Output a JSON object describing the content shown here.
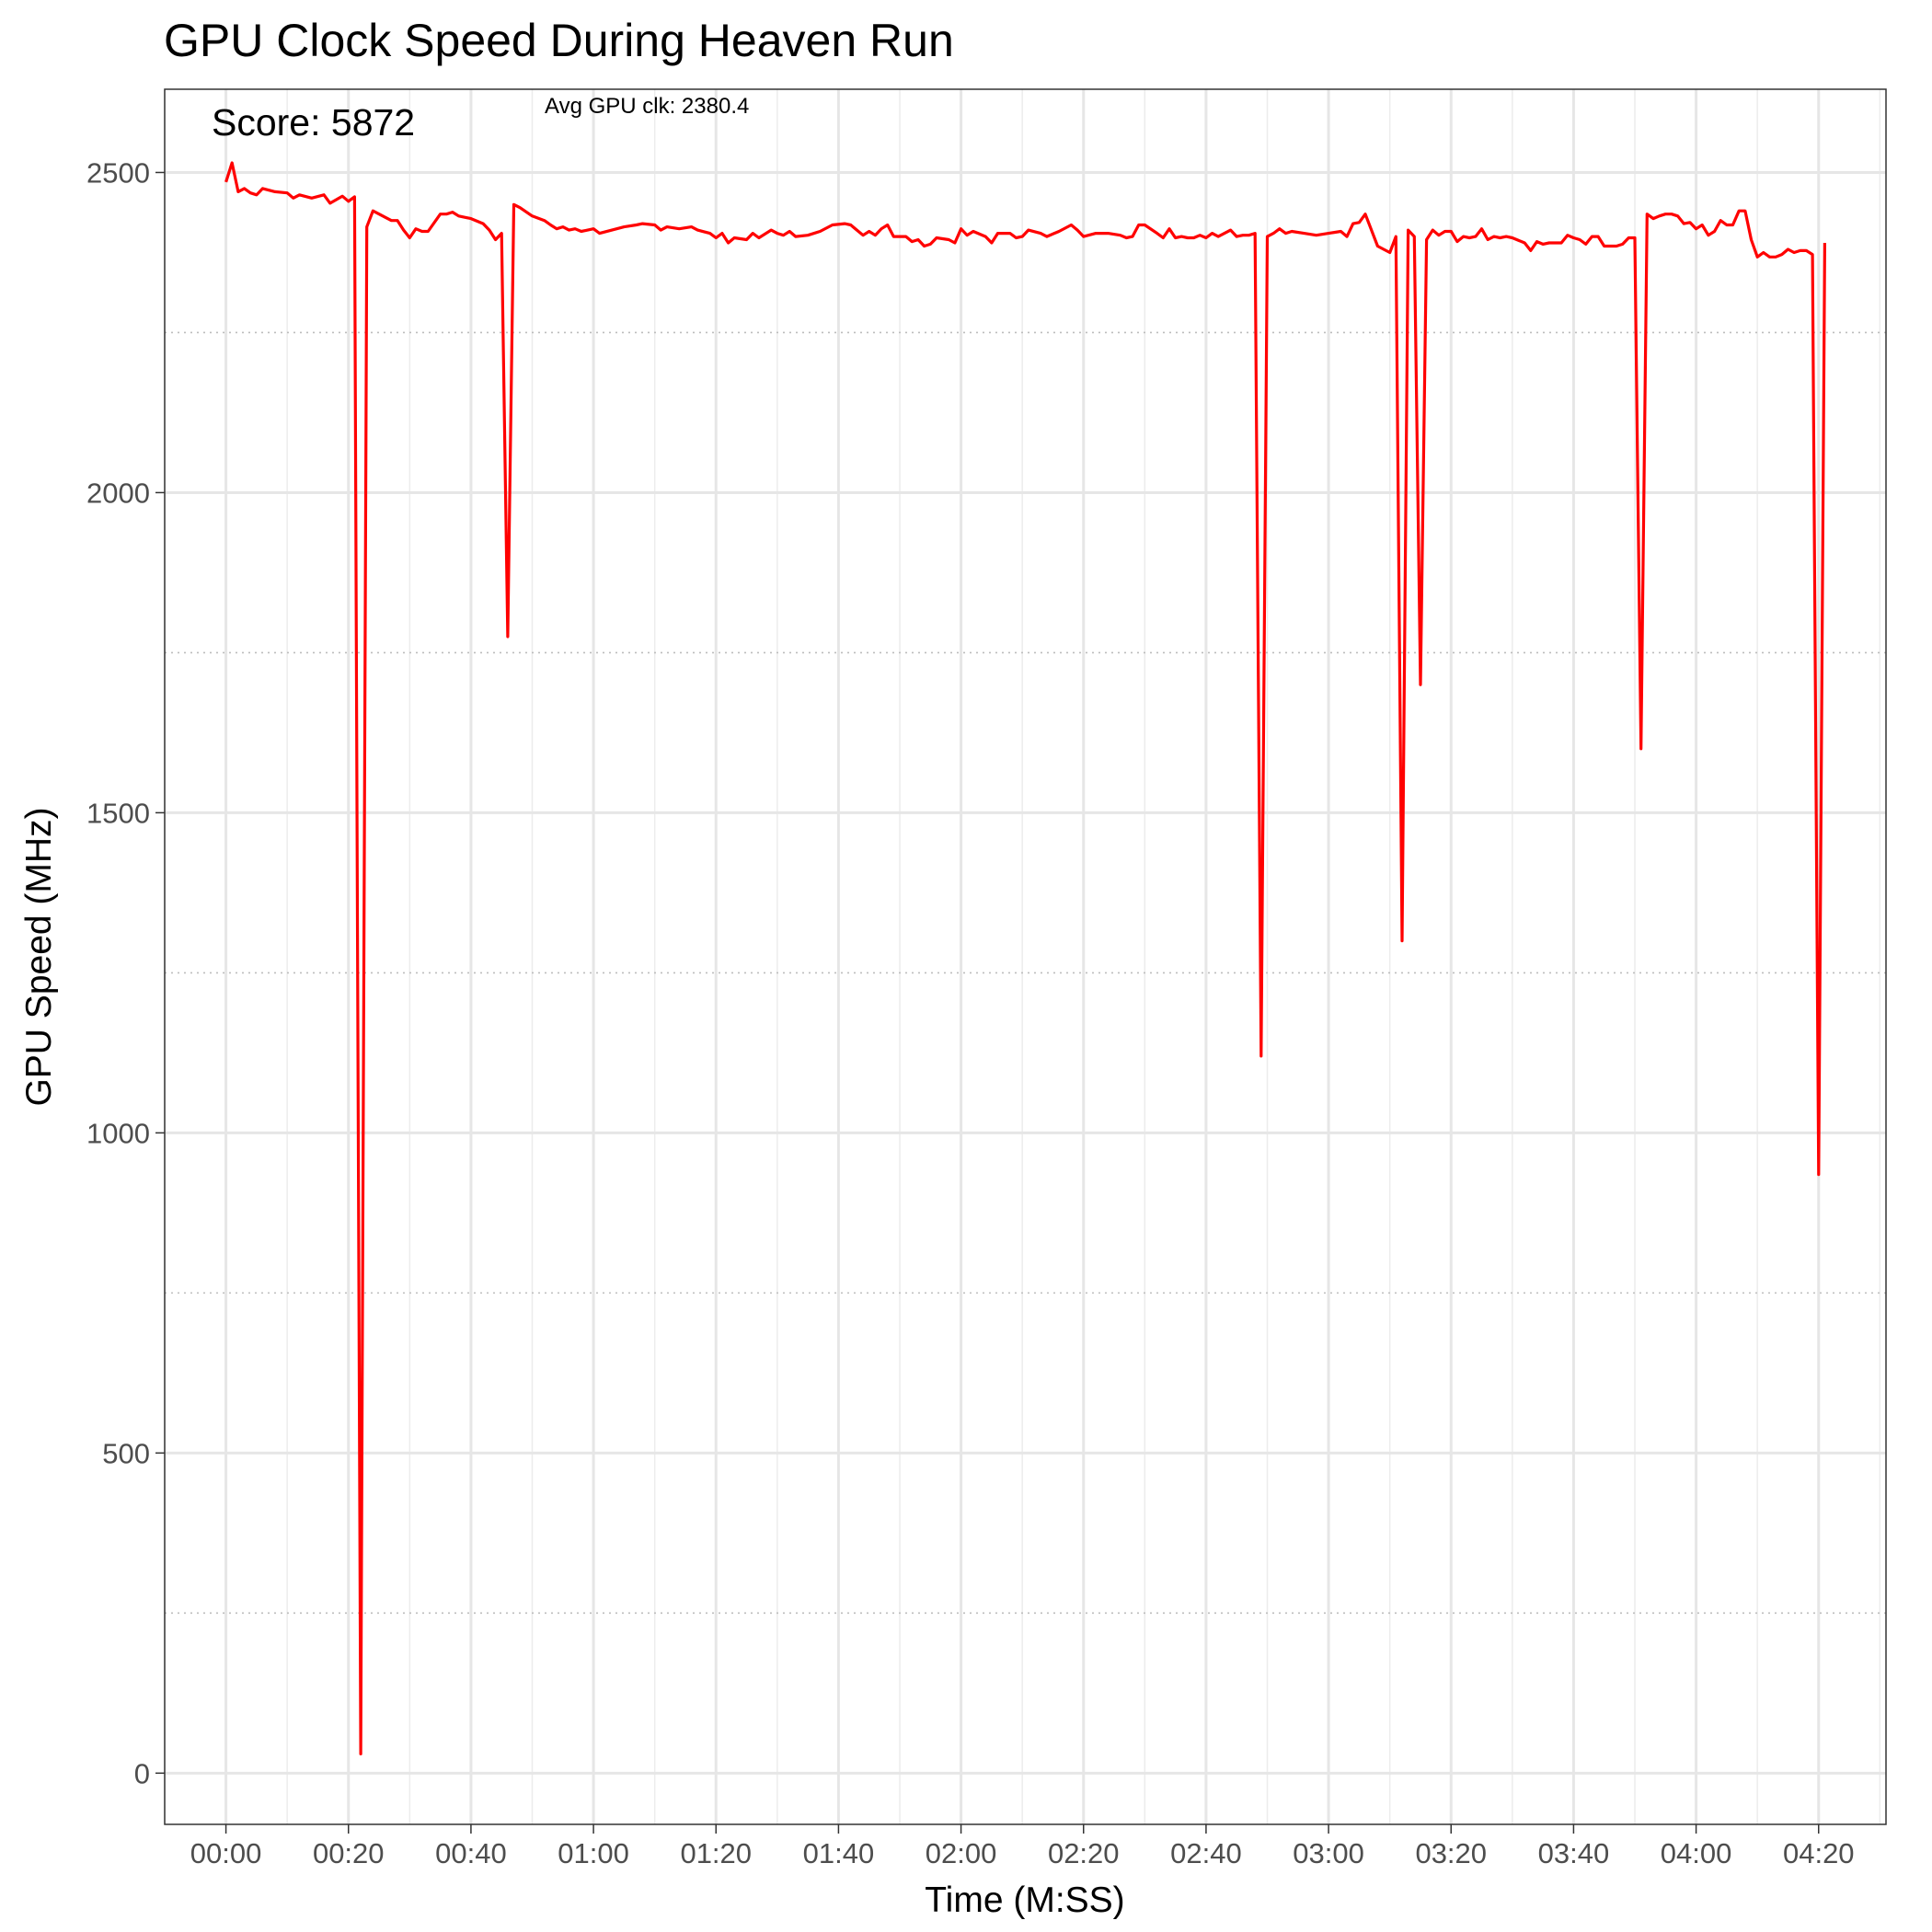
{
  "chart_data": {
    "type": "line",
    "title": "GPU Clock Speed During Heaven Run",
    "xlabel": "Time (M:SS)",
    "ylabel": "GPU Speed (MHz)",
    "x_unit": "seconds",
    "xlim": [
      -10,
      271
    ],
    "ylim": [
      -80,
      2630
    ],
    "x_ticks": [
      0,
      20,
      40,
      60,
      80,
      100,
      120,
      140,
      160,
      180,
      200,
      220,
      240,
      260
    ],
    "x_tick_labels": [
      "00:00",
      "00:20",
      "00:40",
      "01:00",
      "01:20",
      "01:40",
      "02:00",
      "02:20",
      "02:40",
      "03:00",
      "03:20",
      "03:40",
      "04:00",
      "04:20"
    ],
    "y_ticks": [
      0,
      500,
      1000,
      1500,
      2000,
      2500
    ],
    "y_tick_labels": [
      "0",
      "500",
      "1000",
      "1500",
      "2000",
      "2500"
    ],
    "grid": true,
    "dotted_hlines": [
      250,
      750,
      1250,
      1750,
      2250
    ],
    "annotations": {
      "score": "Score: 5872",
      "avg": "Avg GPU clk: 2380.4"
    },
    "series": [
      {
        "color": "#ff0000",
        "points": [
          [
            0,
            2485
          ],
          [
            1,
            2515
          ],
          [
            2,
            2470
          ],
          [
            3,
            2475
          ],
          [
            4,
            2468
          ],
          [
            5,
            2465
          ],
          [
            6,
            2475
          ],
          [
            8,
            2470
          ],
          [
            10,
            2468
          ],
          [
            11,
            2460
          ],
          [
            12,
            2465
          ],
          [
            14,
            2460
          ],
          [
            16,
            2465
          ],
          [
            17,
            2452
          ],
          [
            19,
            2463
          ],
          [
            20,
            2455
          ],
          [
            21,
            2462
          ],
          [
            22,
            30
          ],
          [
            23,
            2415
          ],
          [
            24,
            2440
          ],
          [
            26,
            2430
          ],
          [
            27,
            2425
          ],
          [
            28,
            2425
          ],
          [
            29,
            2410
          ],
          [
            30,
            2398
          ],
          [
            31,
            2412
          ],
          [
            32,
            2408
          ],
          [
            33,
            2408
          ],
          [
            35,
            2435
          ],
          [
            36,
            2435
          ],
          [
            37,
            2438
          ],
          [
            38,
            2432
          ],
          [
            40,
            2428
          ],
          [
            42,
            2420
          ],
          [
            43,
            2410
          ],
          [
            44,
            2395
          ],
          [
            45,
            2405
          ],
          [
            46,
            1775
          ],
          [
            47,
            2450
          ],
          [
            48,
            2445
          ],
          [
            50,
            2432
          ],
          [
            52,
            2425
          ],
          [
            53,
            2418
          ],
          [
            54,
            2412
          ],
          [
            55,
            2415
          ],
          [
            56,
            2410
          ],
          [
            57,
            2412
          ],
          [
            58,
            2408
          ],
          [
            60,
            2412
          ],
          [
            61,
            2405
          ],
          [
            63,
            2410
          ],
          [
            65,
            2415
          ],
          [
            67,
            2418
          ],
          [
            68,
            2420
          ],
          [
            70,
            2418
          ],
          [
            71,
            2410
          ],
          [
            72,
            2415
          ],
          [
            74,
            2412
          ],
          [
            76,
            2415
          ],
          [
            77,
            2410
          ],
          [
            79,
            2405
          ],
          [
            80,
            2398
          ],
          [
            81,
            2405
          ],
          [
            82,
            2390
          ],
          [
            83,
            2398
          ],
          [
            85,
            2395
          ],
          [
            86,
            2405
          ],
          [
            87,
            2398
          ],
          [
            89,
            2410
          ],
          [
            90,
            2405
          ],
          [
            91,
            2402
          ],
          [
            92,
            2408
          ],
          [
            93,
            2400
          ],
          [
            95,
            2402
          ],
          [
            97,
            2408
          ],
          [
            99,
            2418
          ],
          [
            101,
            2420
          ],
          [
            102,
            2418
          ],
          [
            103,
            2410
          ],
          [
            104,
            2402
          ],
          [
            105,
            2408
          ],
          [
            106,
            2402
          ],
          [
            107,
            2412
          ],
          [
            108,
            2418
          ],
          [
            109,
            2400
          ],
          [
            111,
            2400
          ],
          [
            112,
            2392
          ],
          [
            113,
            2395
          ],
          [
            114,
            2385
          ],
          [
            115,
            2388
          ],
          [
            116,
            2398
          ],
          [
            118,
            2395
          ],
          [
            119,
            2390
          ],
          [
            120,
            2412
          ],
          [
            121,
            2402
          ],
          [
            122,
            2408
          ],
          [
            124,
            2400
          ],
          [
            125,
            2390
          ],
          [
            126,
            2405
          ],
          [
            128,
            2405
          ],
          [
            129,
            2398
          ],
          [
            130,
            2400
          ],
          [
            131,
            2410
          ],
          [
            133,
            2405
          ],
          [
            134,
            2400
          ],
          [
            136,
            2408
          ],
          [
            138,
            2418
          ],
          [
            139,
            2410
          ],
          [
            140,
            2400
          ],
          [
            142,
            2405
          ],
          [
            144,
            2405
          ],
          [
            146,
            2402
          ],
          [
            147,
            2398
          ],
          [
            148,
            2400
          ],
          [
            149,
            2418
          ],
          [
            150,
            2418
          ],
          [
            152,
            2405
          ],
          [
            153,
            2398
          ],
          [
            154,
            2412
          ],
          [
            155,
            2398
          ],
          [
            156,
            2400
          ],
          [
            157,
            2398
          ],
          [
            158,
            2398
          ],
          [
            159,
            2402
          ],
          [
            160,
            2398
          ],
          [
            161,
            2405
          ],
          [
            162,
            2400
          ],
          [
            164,
            2410
          ],
          [
            165,
            2400
          ],
          [
            166,
            2402
          ],
          [
            167,
            2402
          ],
          [
            168,
            2405
          ],
          [
            169,
            1120
          ],
          [
            170,
            2400
          ],
          [
            171,
            2405
          ],
          [
            172,
            2412
          ],
          [
            173,
            2405
          ],
          [
            174,
            2408
          ],
          [
            176,
            2405
          ],
          [
            178,
            2402
          ],
          [
            180,
            2405
          ],
          [
            182,
            2408
          ],
          [
            183,
            2400
          ],
          [
            184,
            2420
          ],
          [
            185,
            2422
          ],
          [
            186,
            2435
          ],
          [
            187,
            2410
          ],
          [
            188,
            2385
          ],
          [
            189,
            2380
          ],
          [
            190,
            2375
          ],
          [
            191,
            2400
          ],
          [
            192,
            1300
          ],
          [
            193,
            2410
          ],
          [
            194,
            2400
          ],
          [
            195,
            1700
          ],
          [
            196,
            2395
          ],
          [
            197,
            2410
          ],
          [
            198,
            2402
          ],
          [
            199,
            2408
          ],
          [
            200,
            2408
          ],
          [
            201,
            2392
          ],
          [
            202,
            2400
          ],
          [
            203,
            2398
          ],
          [
            204,
            2400
          ],
          [
            205,
            2412
          ],
          [
            206,
            2395
          ],
          [
            207,
            2400
          ],
          [
            208,
            2398
          ],
          [
            209,
            2400
          ],
          [
            210,
            2398
          ],
          [
            212,
            2390
          ],
          [
            213,
            2378
          ],
          [
            214,
            2392
          ],
          [
            215,
            2388
          ],
          [
            216,
            2390
          ],
          [
            218,
            2390
          ],
          [
            219,
            2402
          ],
          [
            220,
            2398
          ],
          [
            221,
            2395
          ],
          [
            222,
            2388
          ],
          [
            223,
            2400
          ],
          [
            224,
            2400
          ],
          [
            225,
            2385
          ],
          [
            226,
            2385
          ],
          [
            227,
            2385
          ],
          [
            228,
            2388
          ],
          [
            229,
            2398
          ],
          [
            230,
            2398
          ],
          [
            231,
            1600
          ],
          [
            232,
            2435
          ],
          [
            233,
            2428
          ],
          [
            234,
            2432
          ],
          [
            235,
            2435
          ],
          [
            236,
            2435
          ],
          [
            237,
            2432
          ],
          [
            238,
            2420
          ],
          [
            239,
            2422
          ],
          [
            240,
            2412
          ],
          [
            241,
            2418
          ],
          [
            242,
            2402
          ],
          [
            243,
            2408
          ],
          [
            244,
            2425
          ],
          [
            245,
            2418
          ],
          [
            246,
            2418
          ],
          [
            247,
            2440
          ],
          [
            248,
            2440
          ],
          [
            249,
            2395
          ],
          [
            250,
            2368
          ],
          [
            251,
            2375
          ],
          [
            252,
            2368
          ],
          [
            253,
            2368
          ],
          [
            254,
            2372
          ],
          [
            255,
            2380
          ],
          [
            256,
            2375
          ],
          [
            257,
            2378
          ],
          [
            258,
            2378
          ],
          [
            259,
            2372
          ],
          [
            260,
            935
          ],
          [
            261,
            2390
          ]
        ]
      }
    ]
  }
}
